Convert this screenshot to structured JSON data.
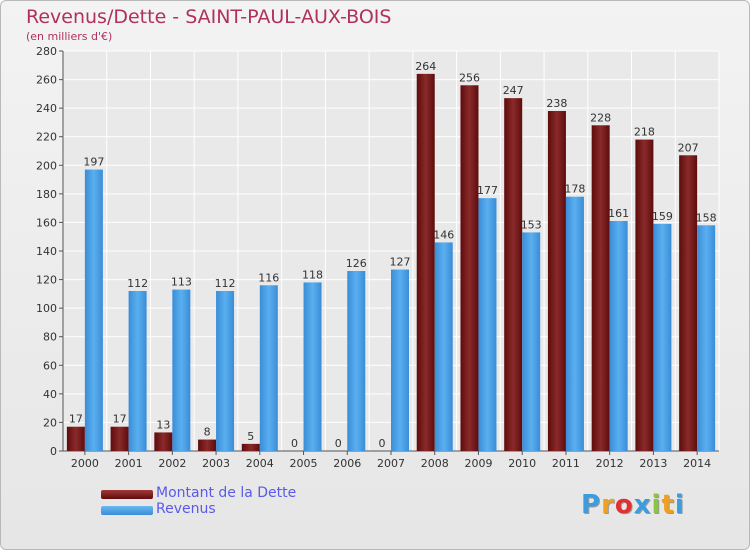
{
  "header": {
    "title": "Revenus/Dette - SAINT-PAUL-AUX-BOIS",
    "subtitle": "(en milliers d'€)"
  },
  "colors": {
    "title": "#b03060",
    "dette": "#7a1a1a",
    "revenus": "#3c8fd6",
    "legend_text": "#5a5ae8"
  },
  "chart_data": {
    "type": "bar",
    "title": "Revenus/Dette - SAINT-PAUL-AUX-BOIS",
    "ylabel": "(en milliers d'€)",
    "ylim": [
      0,
      280
    ],
    "yticks": [
      0,
      20,
      40,
      60,
      80,
      100,
      120,
      140,
      160,
      180,
      200,
      220,
      240,
      260,
      280
    ],
    "grid": true,
    "legend_position": "bottom-left",
    "categories": [
      "2000",
      "2001",
      "2002",
      "2003",
      "2004",
      "2005",
      "2006",
      "2007",
      "2008",
      "2009",
      "2010",
      "2011",
      "2012",
      "2013",
      "2014"
    ],
    "series": [
      {
        "name": "Montant de la Dette",
        "values": [
          17,
          17,
          13,
          8,
          5,
          0,
          0,
          0,
          264,
          256,
          247,
          238,
          228,
          218,
          207
        ]
      },
      {
        "name": "Revenus",
        "values": [
          197,
          112,
          113,
          112,
          116,
          118,
          126,
          127,
          146,
          177,
          153,
          178,
          161,
          159,
          158
        ]
      }
    ]
  },
  "legend": {
    "items": [
      {
        "label": "Montant de la Dette"
      },
      {
        "label": "Revenus"
      }
    ]
  },
  "logo": {
    "letters": [
      "P",
      "r",
      "o",
      "x",
      "i",
      "t",
      "i"
    ],
    "colors": [
      "#3b9de0",
      "#f0a020",
      "#e03030",
      "#3b9de0",
      "#8bc53f",
      "#f0a020",
      "#3b9de0"
    ]
  }
}
